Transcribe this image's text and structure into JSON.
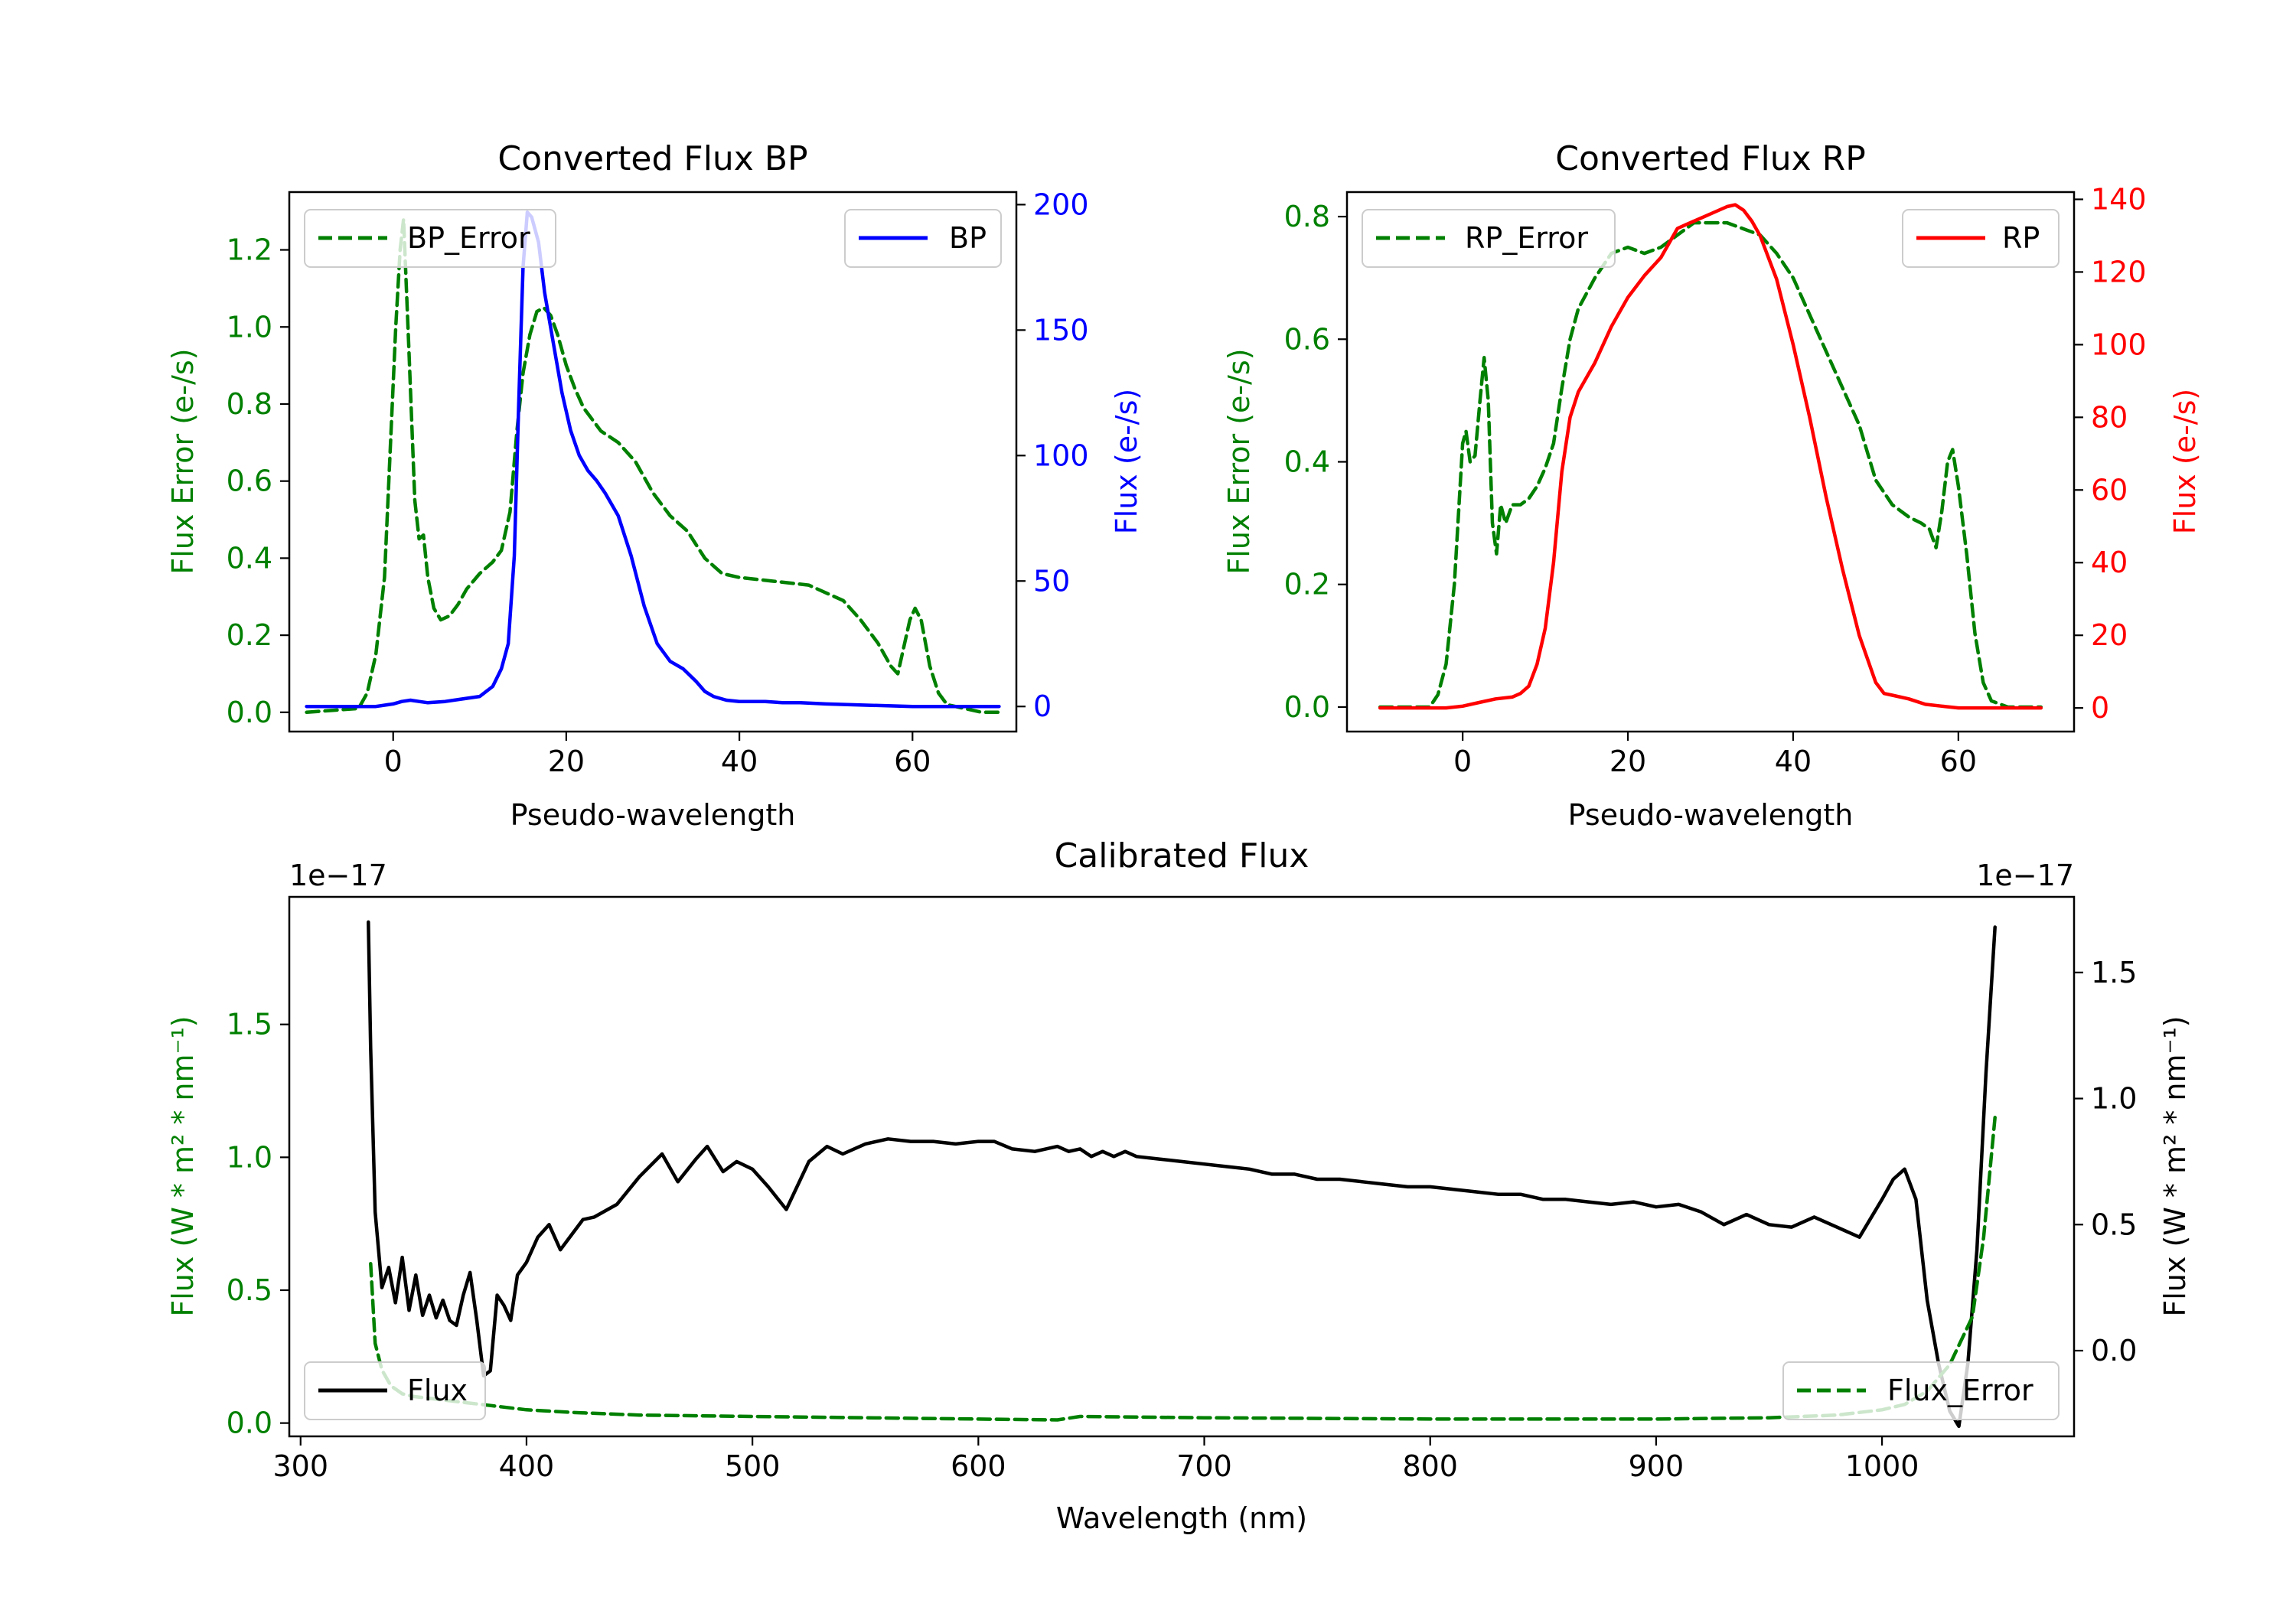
{
  "chart_data": [
    {
      "type": "line",
      "title": "Converted Flux BP",
      "xlabel": "Pseudo-wavelength",
      "ylabel_left": "Flux Error (e-/s)",
      "ylabel_right": "Flux (e-/s)",
      "xlim": [
        -12,
        72
      ],
      "ylim_left": [
        -0.05,
        1.35
      ],
      "ylim_right": [
        -10,
        205
      ],
      "xticks": [
        0,
        20,
        40,
        60
      ],
      "yticks_left": [
        0.0,
        0.2,
        0.4,
        0.6,
        0.8,
        1.0,
        1.2
      ],
      "yticks_right": [
        0,
        50,
        100,
        150,
        200
      ],
      "left_color": "#008000",
      "right_color": "#0000ff",
      "legend_left": {
        "label": "BP_Error",
        "position": "upper-left"
      },
      "legend_right": {
        "label": "BP",
        "position": "upper-right"
      },
      "series": [
        {
          "name": "BP_Error",
          "axis": "left",
          "style": "dashed",
          "color": "#008000",
          "x": [
            -10,
            -4,
            -3,
            -2,
            -1,
            -0.3,
            0.3,
            0.8,
            1.2,
            1.8,
            2.5,
            3,
            3.5,
            4,
            4.7,
            5.5,
            6.5,
            7.5,
            8.5,
            10,
            11.5,
            12.5,
            13.5,
            14.3,
            15,
            15.8,
            16.6,
            17.4,
            18.2,
            19,
            20,
            21,
            22,
            24,
            26,
            28,
            30,
            32,
            34,
            36,
            38,
            40,
            44,
            48,
            52,
            54,
            56,
            57.5,
            58.3,
            59,
            59.7,
            60.3,
            61,
            62,
            63,
            64,
            66,
            68,
            70
          ],
          "y": [
            0.0,
            0.01,
            0.05,
            0.15,
            0.35,
            0.7,
            1.0,
            1.2,
            1.28,
            0.95,
            0.55,
            0.45,
            0.46,
            0.35,
            0.27,
            0.24,
            0.25,
            0.28,
            0.32,
            0.36,
            0.39,
            0.42,
            0.52,
            0.73,
            0.88,
            0.98,
            1.04,
            1.05,
            1.03,
            0.98,
            0.9,
            0.84,
            0.79,
            0.73,
            0.7,
            0.65,
            0.57,
            0.51,
            0.47,
            0.4,
            0.36,
            0.35,
            0.34,
            0.33,
            0.29,
            0.24,
            0.18,
            0.12,
            0.1,
            0.17,
            0.24,
            0.27,
            0.24,
            0.12,
            0.05,
            0.02,
            0.01,
            0.0,
            0.0
          ]
        },
        {
          "name": "BP",
          "axis": "right",
          "style": "solid",
          "color": "#0000ff",
          "x": [
            -10,
            -2,
            0,
            1,
            2,
            3,
            4,
            6,
            8,
            10,
            11.5,
            12.5,
            13.3,
            14,
            14.5,
            15,
            15.5,
            16,
            16.8,
            17.5,
            18.5,
            19.5,
            20.5,
            21.5,
            22.5,
            23.5,
            24.5,
            26,
            27.5,
            29,
            30.5,
            32,
            33.5,
            35,
            36,
            37,
            38.5,
            40,
            41,
            43,
            45,
            47,
            50,
            55,
            60,
            65,
            70
          ],
          "y": [
            0,
            0,
            1,
            2,
            2.5,
            2,
            1.5,
            2,
            3,
            4,
            8,
            15,
            25,
            60,
            120,
            175,
            197,
            195,
            185,
            165,
            145,
            125,
            110,
            100,
            94,
            90,
            85,
            76,
            60,
            40,
            25,
            18,
            15,
            10,
            6,
            4,
            2.5,
            2,
            2,
            2,
            1.5,
            1.5,
            1,
            0.5,
            0,
            0,
            0
          ]
        }
      ]
    },
    {
      "type": "line",
      "title": "Converted Flux RP",
      "xlabel": "Pseudo-wavelength",
      "ylabel_left": "Flux Error (e-/s)",
      "ylabel_right": "Flux (e-/s)",
      "xlim": [
        -14,
        74
      ],
      "ylim_left": [
        -0.04,
        0.84
      ],
      "ylim_right": [
        -6.5,
        142
      ],
      "xticks": [
        0,
        20,
        40,
        60
      ],
      "yticks_left": [
        0.0,
        0.2,
        0.4,
        0.6,
        0.8
      ],
      "yticks_right": [
        0,
        20,
        40,
        60,
        80,
        100,
        120,
        140
      ],
      "left_color": "#008000",
      "right_color": "#ff0000",
      "legend_left": {
        "label": "RP_Error",
        "position": "upper-left"
      },
      "legend_right": {
        "label": "RP",
        "position": "upper-right"
      },
      "series": [
        {
          "name": "RP_Error",
          "axis": "left",
          "style": "dashed",
          "color": "#008000",
          "x": [
            -10,
            -4,
            -3,
            -2,
            -1,
            0,
            0.4,
            0.9,
            1.5,
            2.1,
            2.6,
            3.1,
            3.6,
            4.1,
            4.6,
            5.2,
            6,
            7,
            8,
            9,
            10,
            11,
            12,
            13,
            14,
            16,
            18,
            20,
            22,
            24,
            26,
            28,
            30,
            32,
            34,
            36,
            38,
            40,
            42,
            44,
            46,
            48,
            50,
            52,
            54,
            55.5,
            56.5,
            57.3,
            58,
            58.7,
            59.3,
            60,
            61,
            62,
            63,
            64,
            66,
            70
          ],
          "y": [
            0.0,
            0.0,
            0.02,
            0.07,
            0.2,
            0.43,
            0.45,
            0.4,
            0.41,
            0.5,
            0.57,
            0.5,
            0.3,
            0.25,
            0.33,
            0.3,
            0.33,
            0.33,
            0.34,
            0.36,
            0.39,
            0.43,
            0.52,
            0.6,
            0.65,
            0.7,
            0.74,
            0.75,
            0.74,
            0.75,
            0.77,
            0.79,
            0.79,
            0.79,
            0.78,
            0.77,
            0.74,
            0.7,
            0.64,
            0.58,
            0.52,
            0.46,
            0.37,
            0.33,
            0.31,
            0.3,
            0.29,
            0.26,
            0.32,
            0.4,
            0.42,
            0.36,
            0.25,
            0.12,
            0.04,
            0.01,
            0.0,
            0.0
          ]
        },
        {
          "name": "RP",
          "axis": "right",
          "style": "solid",
          "color": "#ff0000",
          "x": [
            -10,
            -2,
            0,
            2,
            4,
            6,
            7,
            8,
            9,
            10,
            11,
            12,
            13,
            14,
            16,
            18,
            20,
            22,
            24,
            26,
            27,
            28,
            30,
            32,
            33,
            34,
            35,
            36,
            38,
            40,
            42,
            44,
            46,
            48,
            50,
            51,
            52,
            54,
            56,
            58,
            60,
            62,
            65,
            70
          ],
          "y": [
            0,
            0,
            0.5,
            1.5,
            2.5,
            3,
            4,
            6,
            12,
            22,
            40,
            65,
            80,
            87,
            95,
            105,
            113,
            119,
            124,
            132,
            133,
            134,
            136,
            138,
            138.5,
            137,
            134,
            130,
            118,
            100,
            80,
            58,
            38,
            20,
            7,
            4,
            3.5,
            2.5,
            1,
            0.5,
            0,
            0,
            0,
            0
          ]
        }
      ]
    },
    {
      "type": "line",
      "title": "Calibrated Flux",
      "xlabel": "Wavelength (nm)",
      "ylabel_left": "Flux (W * m² * nm⁻¹)",
      "ylabel_right": "Flux (W * m² * nm⁻¹)",
      "offset_left": "1e−17",
      "offset_right": "1e−17",
      "xlim": [
        295,
        1085
      ],
      "ylim_left": [
        -0.05,
        1.98
      ],
      "ylim_right": [
        -0.34,
        1.8
      ],
      "xticks": [
        300,
        400,
        500,
        600,
        700,
        800,
        900,
        1000
      ],
      "yticks_left": [
        0.0,
        0.5,
        1.0,
        1.5
      ],
      "yticks_right": [
        0.0,
        0.5,
        1.0,
        1.5
      ],
      "left_color": "#008000",
      "right_color": "#000000",
      "legend_left": {
        "label": "Flux",
        "position": "lower-left"
      },
      "legend_right": {
        "label": "Flux_Error",
        "position": "lower-right"
      },
      "series": [
        {
          "name": "Flux",
          "axis": "right",
          "style": "solid",
          "color": "#000000",
          "x": [
            330,
            331,
            333,
            336,
            339,
            342,
            345,
            348,
            351,
            354,
            357,
            360,
            363,
            366,
            369,
            372,
            375,
            378,
            381,
            384,
            387,
            390,
            393,
            396,
            400,
            405,
            410,
            415,
            420,
            425,
            430,
            440,
            450,
            460,
            467,
            475,
            480,
            487,
            493,
            500,
            507,
            515,
            525,
            533,
            540,
            550,
            560,
            570,
            580,
            590,
            600,
            607,
            615,
            625,
            635,
            640,
            645,
            650,
            655,
            660,
            665,
            670,
            680,
            690,
            700,
            710,
            720,
            730,
            740,
            750,
            760,
            770,
            780,
            790,
            800,
            810,
            820,
            830,
            840,
            850,
            860,
            870,
            880,
            890,
            900,
            910,
            920,
            930,
            940,
            950,
            960,
            970,
            980,
            990,
            1000,
            1005,
            1010,
            1015,
            1020,
            1025,
            1030,
            1034,
            1038,
            1042,
            1046,
            1050
          ],
          "y": [
            1.7,
            1.2,
            0.55,
            0.25,
            0.33,
            0.19,
            0.37,
            0.16,
            0.3,
            0.14,
            0.22,
            0.13,
            0.2,
            0.12,
            0.1,
            0.22,
            0.31,
            0.12,
            -0.1,
            -0.08,
            0.22,
            0.18,
            0.12,
            0.3,
            0.35,
            0.45,
            0.5,
            0.4,
            0.46,
            0.52,
            0.53,
            0.58,
            0.69,
            0.78,
            0.67,
            0.76,
            0.81,
            0.71,
            0.75,
            0.72,
            0.65,
            0.56,
            0.75,
            0.81,
            0.78,
            0.82,
            0.84,
            0.83,
            0.83,
            0.82,
            0.83,
            0.83,
            0.8,
            0.79,
            0.81,
            0.79,
            0.8,
            0.77,
            0.79,
            0.77,
            0.79,
            0.77,
            0.76,
            0.75,
            0.74,
            0.73,
            0.72,
            0.7,
            0.7,
            0.68,
            0.68,
            0.67,
            0.66,
            0.65,
            0.65,
            0.64,
            0.63,
            0.62,
            0.62,
            0.6,
            0.6,
            0.59,
            0.58,
            0.59,
            0.57,
            0.58,
            0.55,
            0.5,
            0.54,
            0.5,
            0.49,
            0.53,
            0.49,
            0.45,
            0.6,
            0.68,
            0.72,
            0.6,
            0.2,
            -0.05,
            -0.24,
            -0.3,
            -0.05,
            0.4,
            1.1,
            1.68
          ]
        },
        {
          "name": "Flux_Error",
          "axis": "left",
          "style": "dashed",
          "color": "#008000",
          "x": [
            331,
            333,
            336,
            340,
            345,
            350,
            360,
            370,
            380,
            390,
            400,
            420,
            450,
            500,
            550,
            600,
            635,
            645,
            700,
            800,
            900,
            950,
            980,
            1000,
            1010,
            1020,
            1030,
            1040,
            1045,
            1050
          ],
          "y": [
            0.6,
            0.3,
            0.2,
            0.14,
            0.11,
            0.1,
            0.09,
            0.08,
            0.07,
            0.06,
            0.05,
            0.04,
            0.03,
            0.025,
            0.02,
            0.015,
            0.012,
            0.025,
            0.02,
            0.015,
            0.015,
            0.02,
            0.03,
            0.05,
            0.07,
            0.12,
            0.22,
            0.4,
            0.7,
            1.15
          ]
        }
      ]
    }
  ]
}
